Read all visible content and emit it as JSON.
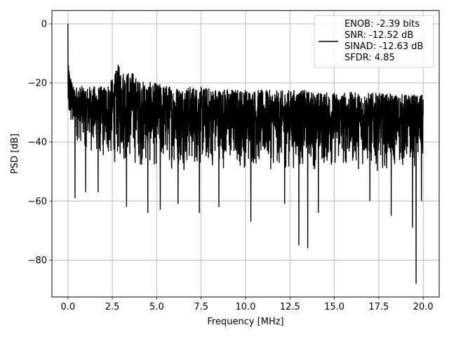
{
  "chart_data": {
    "type": "line",
    "title": "",
    "xlabel": "Frequency [MHz]",
    "ylabel": "PSD [dB]",
    "xlim": [
      -0.9,
      20.9
    ],
    "ylim": [
      -92.5,
      4.5
    ],
    "xticks": [
      0.0,
      2.5,
      5.0,
      7.5,
      10.0,
      12.5,
      15.0,
      17.5,
      20.0
    ],
    "xtick_labels": [
      "0.0",
      "2.5",
      "5.0",
      "7.5",
      "10.0",
      "12.5",
      "15.0",
      "17.5",
      "20.0"
    ],
    "yticks": [
      0,
      -20,
      -40,
      -60,
      -80
    ],
    "ytick_labels": [
      "0",
      "−20",
      "−40",
      "−60",
      "−80"
    ],
    "grid": true,
    "legend_position": "top-right",
    "series": [
      {
        "color": "#000000",
        "x_range": [
          0.0,
          20.0
        ],
        "peak": {
          "x": 0.0,
          "y": 0.0
        },
        "upper_envelope": [
          [
            0.05,
            -14
          ],
          [
            0.3,
            -21
          ],
          [
            1.0,
            -21
          ],
          [
            2.0,
            -21
          ],
          [
            2.6,
            -18
          ],
          [
            2.8,
            -13.5
          ],
          [
            3.0,
            -15
          ],
          [
            3.3,
            -16
          ],
          [
            3.6,
            -16
          ],
          [
            4.0,
            -19
          ],
          [
            5.0,
            -20
          ],
          [
            6.0,
            -21
          ],
          [
            7.0,
            -21
          ],
          [
            8.0,
            -21.5
          ],
          [
            10.0,
            -22
          ],
          [
            12.0,
            -22.5
          ],
          [
            13.0,
            -22
          ],
          [
            14.0,
            -23
          ],
          [
            16.0,
            -23
          ],
          [
            18.0,
            -23.5
          ],
          [
            20.0,
            -24
          ]
        ],
        "mean_level": [
          [
            0.0,
            -32
          ],
          [
            5.0,
            -33
          ],
          [
            10.0,
            -33
          ],
          [
            15.0,
            -33
          ],
          [
            20.0,
            -33
          ]
        ],
        "lower_envelope": [
          [
            0.0,
            -38
          ],
          [
            2.0,
            -48
          ],
          [
            5.0,
            -50
          ],
          [
            10.0,
            -50
          ],
          [
            15.0,
            -50
          ],
          [
            20.0,
            -50
          ]
        ],
        "deep_nulls": [
          [
            0.4,
            -59
          ],
          [
            1.0,
            -57
          ],
          [
            1.7,
            -57
          ],
          [
            3.3,
            -62
          ],
          [
            4.5,
            -64
          ],
          [
            5.2,
            -63
          ],
          [
            6.2,
            -61
          ],
          [
            7.4,
            -64
          ],
          [
            8.5,
            -62
          ],
          [
            10.3,
            -67
          ],
          [
            12.2,
            -61
          ],
          [
            13.0,
            -75
          ],
          [
            13.5,
            -76
          ],
          [
            14.1,
            -64
          ],
          [
            17.0,
            -60
          ],
          [
            18.2,
            -65
          ],
          [
            19.4,
            -69
          ],
          [
            19.6,
            -88
          ],
          [
            19.9,
            -60
          ]
        ]
      }
    ],
    "legend": [
      "ENOB: -2.39 bits",
      "SNR: -12.52 dB",
      "SINAD: -12.63 dB",
      "SFDR: 4.85"
    ]
  }
}
